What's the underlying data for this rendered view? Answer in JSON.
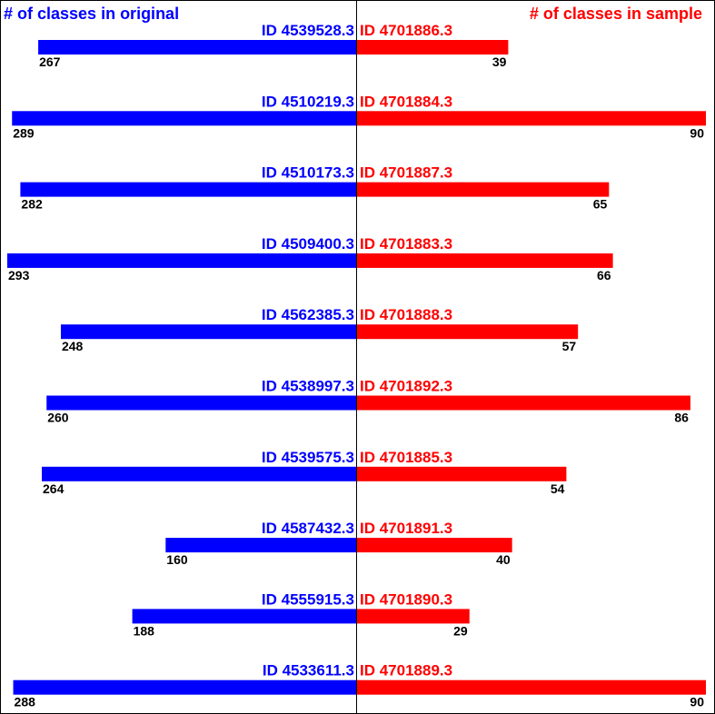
{
  "chart_data": {
    "type": "bar",
    "orientation": "horizontal-diverging",
    "left_header": "# of classes in original",
    "right_header": "# of classes in sample",
    "colors": {
      "left": "#0000ff",
      "right": "#ff0000",
      "text": "#000000"
    },
    "left_max": 293,
    "right_max": 90,
    "rows": [
      {
        "left_id": "ID 4539528.3",
        "left_value": 267,
        "right_id": "ID 4701886.3",
        "right_value": 39
      },
      {
        "left_id": "ID 4510219.3",
        "left_value": 289,
        "right_id": "ID 4701884.3",
        "right_value": 90
      },
      {
        "left_id": "ID 4510173.3",
        "left_value": 282,
        "right_id": "ID 4701887.3",
        "right_value": 65
      },
      {
        "left_id": "ID 4509400.3",
        "left_value": 293,
        "right_id": "ID 4701883.3",
        "right_value": 66
      },
      {
        "left_id": "ID 4562385.3",
        "left_value": 248,
        "right_id": "ID 4701888.3",
        "right_value": 57
      },
      {
        "left_id": "ID 4538997.3",
        "left_value": 260,
        "right_id": "ID 4701892.3",
        "right_value": 86
      },
      {
        "left_id": "ID 4539575.3",
        "left_value": 264,
        "right_id": "ID 4701885.3",
        "right_value": 54
      },
      {
        "left_id": "ID 4587432.3",
        "left_value": 160,
        "right_id": "ID 4701891.3",
        "right_value": 40
      },
      {
        "left_id": "ID 4555915.3",
        "left_value": 188,
        "right_id": "ID 4701890.3",
        "right_value": 29
      },
      {
        "left_id": "ID 4533611.3",
        "left_value": 288,
        "right_id": "ID 4701889.3",
        "right_value": 90
      }
    ]
  }
}
